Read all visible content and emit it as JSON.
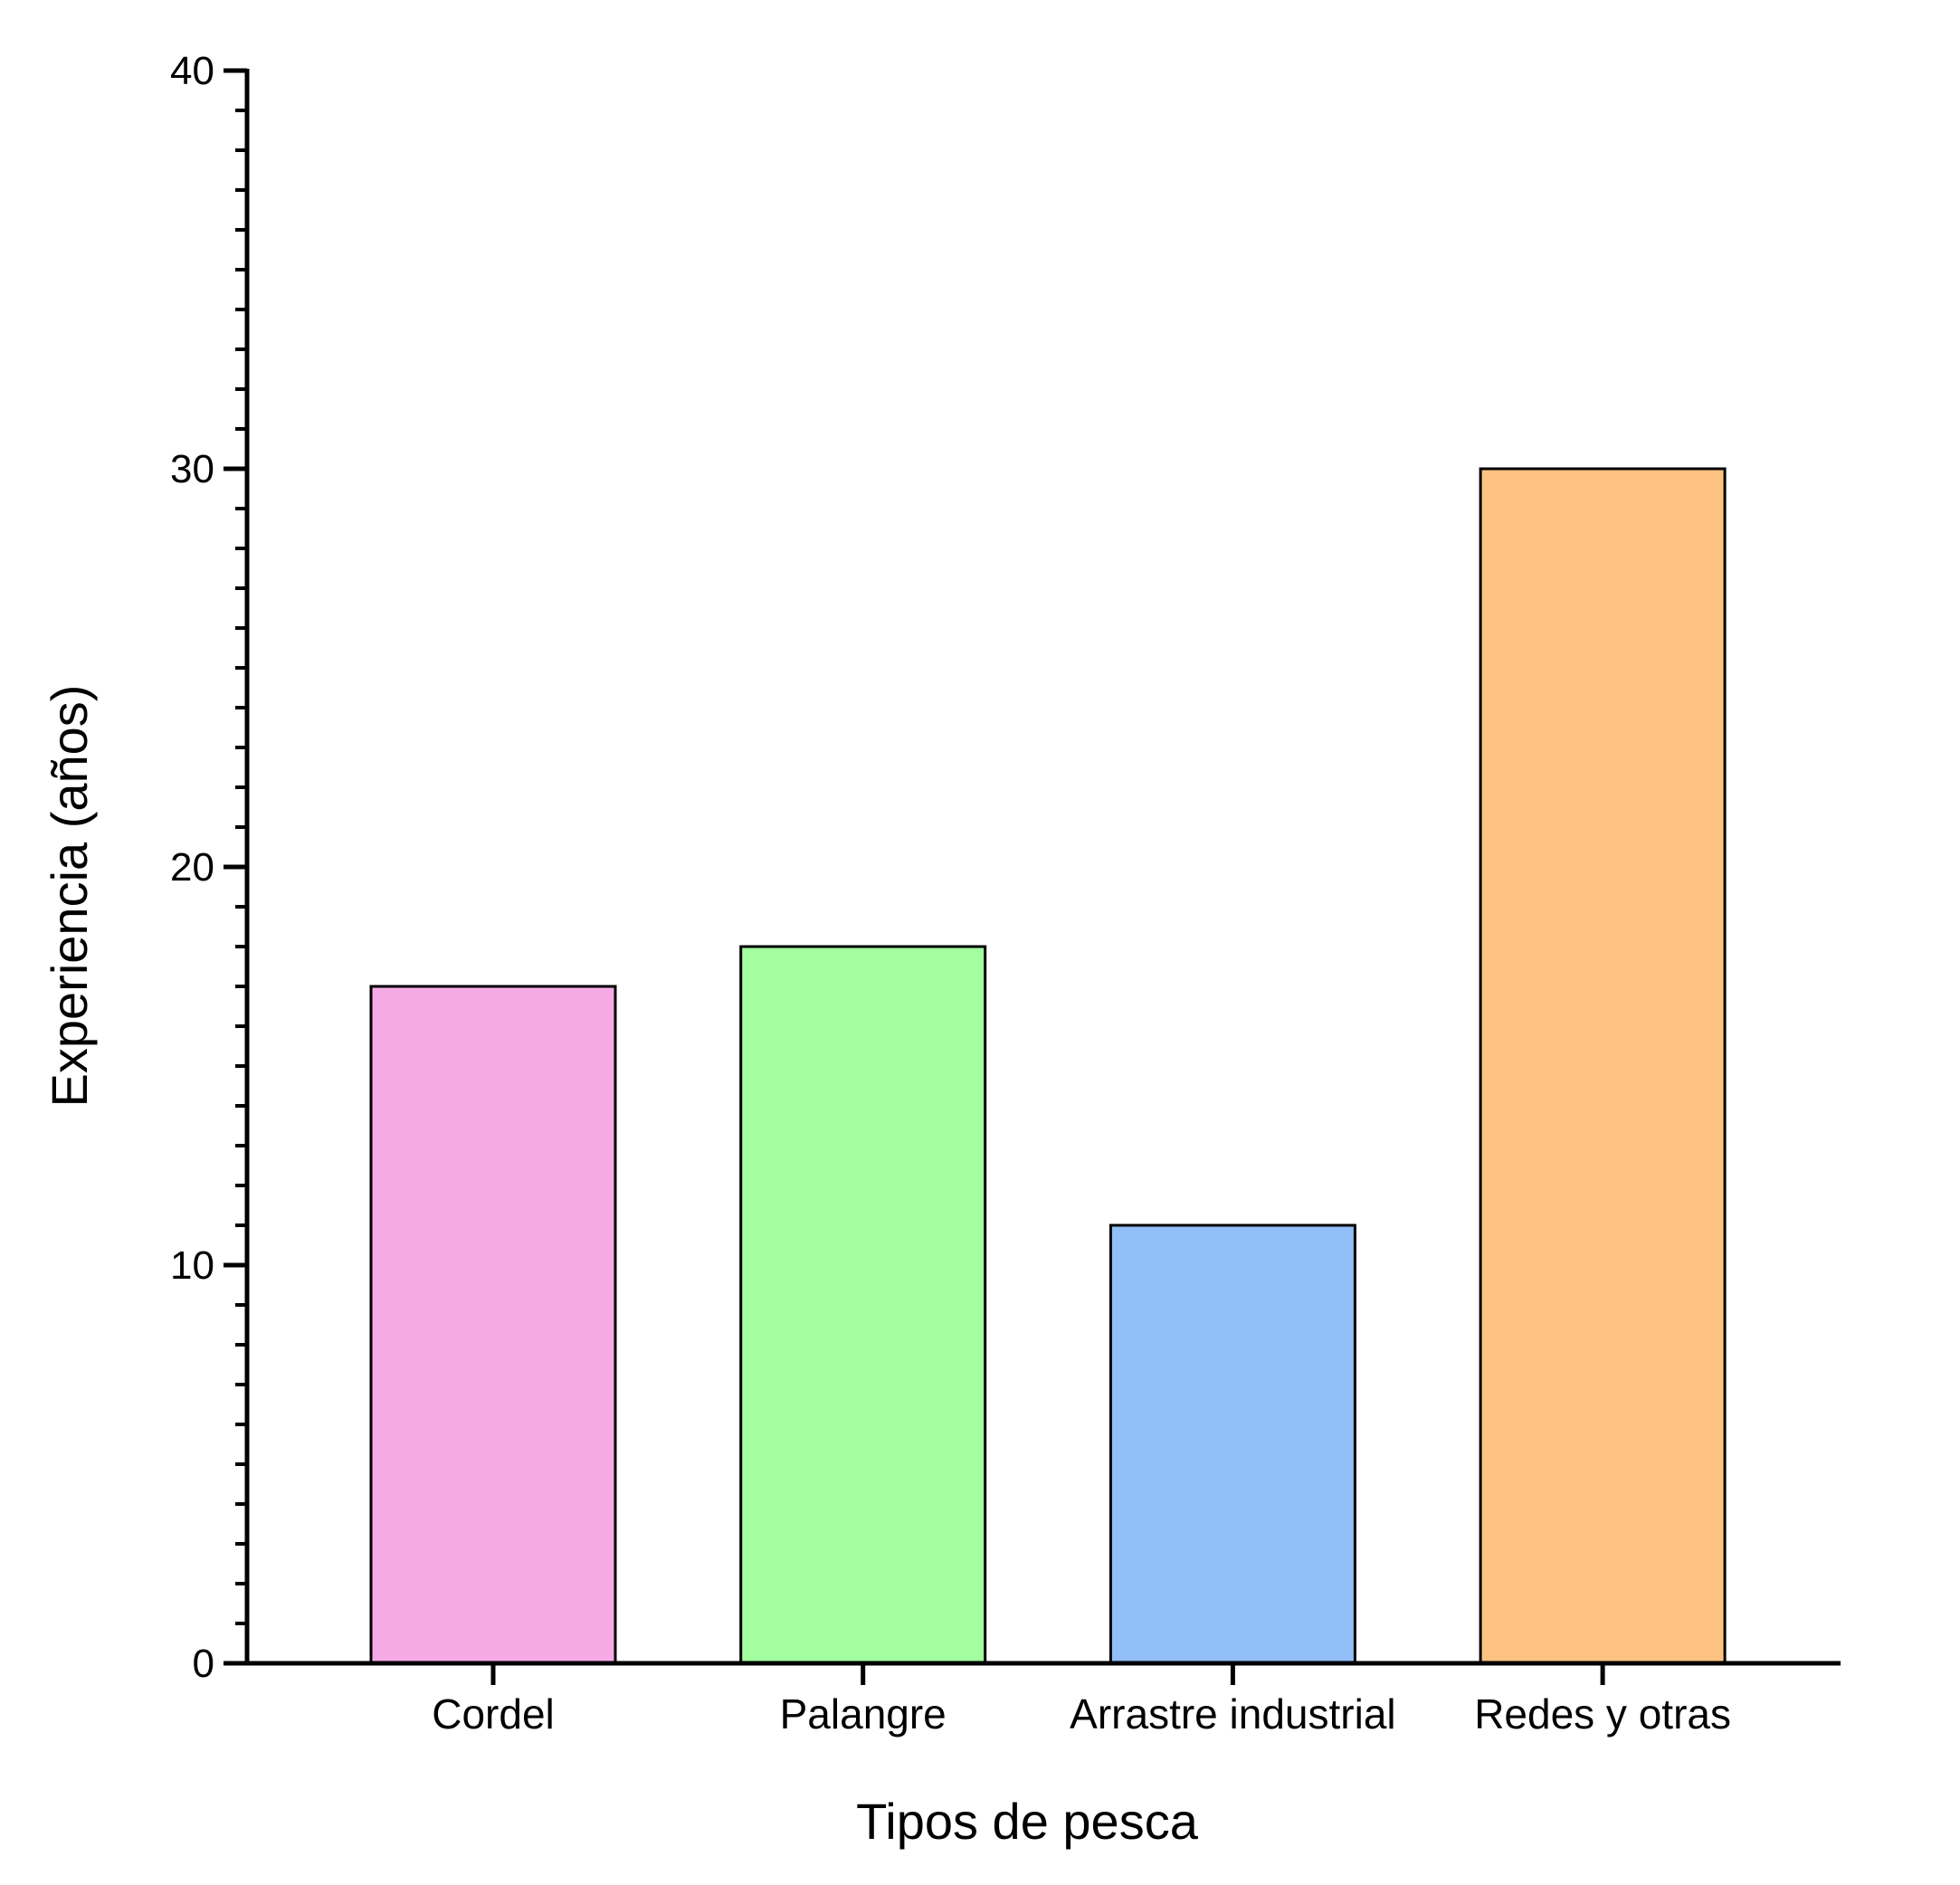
{
  "chart_data": {
    "type": "bar",
    "title": "",
    "xlabel": "Tipos de pesca",
    "ylabel": "Experiencia (años)",
    "categories": [
      "Cordel",
      "Palangre",
      "Arrastre industrial",
      "Redes y otras"
    ],
    "values": [
      17,
      18,
      11,
      30
    ],
    "colors": [
      "#F5AAE6",
      "#A2FE9E",
      "#92BEF8",
      "#FDC282"
    ],
    "ylim": [
      0,
      40
    ],
    "yticks": [
      "0",
      "10",
      "20",
      "30",
      "40"
    ],
    "minor_ticks_per_major": 10,
    "grid": false,
    "legend": "none"
  }
}
